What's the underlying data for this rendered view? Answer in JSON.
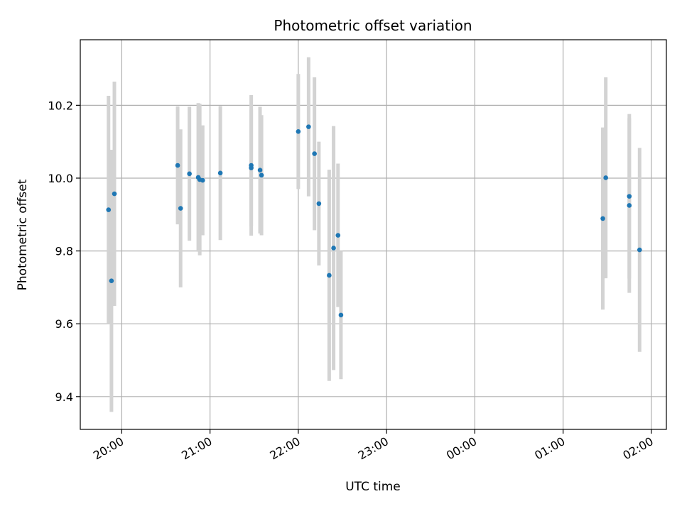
{
  "chart_data": {
    "type": "scatter",
    "title": "Photometric offset variation",
    "xlabel": "UTC time",
    "ylabel": "Photometric offset",
    "x_tick_labels": [
      "20:00",
      "21:00",
      "22:00",
      "23:00",
      "00:00",
      "01:00",
      "02:00"
    ],
    "x_tick_hours": [
      20,
      21,
      22,
      23,
      24,
      25,
      26
    ],
    "xlim_hours": [
      19.53,
      26.17
    ],
    "y_ticks": [
      9.4,
      9.6,
      9.8,
      10.0,
      10.2
    ],
    "y_tick_labels": [
      "9.4",
      "9.6",
      "9.8",
      "10.0",
      "10.2"
    ],
    "ylim": [
      9.31,
      10.38
    ],
    "grid": true,
    "colors": {
      "point": "#1f77b4",
      "errorbar": "#d3d3d3",
      "grid": "#b0b0b0"
    },
    "series": [
      {
        "points": [
          {
            "t": "19:51",
            "y": 9.913,
            "err": 0.313
          },
          {
            "t": "19:53",
            "y": 9.718,
            "err": 0.36
          },
          {
            "t": "19:55",
            "y": 9.957,
            "err": 0.308
          },
          {
            "t": "20:38",
            "y": 10.035,
            "err": 0.162
          },
          {
            "t": "20:40",
            "y": 9.917,
            "err": 0.217
          },
          {
            "t": "20:46",
            "y": 10.012,
            "err": 0.184
          },
          {
            "t": "20:52",
            "y": 10.002,
            "err": 0.204
          },
          {
            "t": "20:53",
            "y": 9.996,
            "err": 0.208
          },
          {
            "t": "20:55",
            "y": 9.994,
            "err": 0.151
          },
          {
            "t": "21:07",
            "y": 10.014,
            "err": 0.184
          },
          {
            "t": "21:28",
            "y": 10.035,
            "err": 0.193
          },
          {
            "t": "21:28",
            "y": 10.028,
            "err": 0.16
          },
          {
            "t": "21:34",
            "y": 10.022,
            "err": 0.174
          },
          {
            "t": "21:35",
            "y": 10.008,
            "err": 0.165
          },
          {
            "t": "22:00",
            "y": 10.128,
            "err": 0.158
          },
          {
            "t": "22:07",
            "y": 10.141,
            "err": 0.191
          },
          {
            "t": "22:11",
            "y": 10.067,
            "err": 0.21
          },
          {
            "t": "22:14",
            "y": 9.93,
            "err": 0.17
          },
          {
            "t": "22:21",
            "y": 9.733,
            "err": 0.29
          },
          {
            "t": "22:24",
            "y": 9.808,
            "err": 0.335
          },
          {
            "t": "22:27",
            "y": 9.843,
            "err": 0.197
          },
          {
            "t": "22:29",
            "y": 9.624,
            "err": 0.176
          },
          {
            "t": "01:27",
            "y": 9.889,
            "err": 0.25
          },
          {
            "t": "01:29",
            "y": 10.001,
            "err": 0.276
          },
          {
            "t": "01:45",
            "y": 9.95,
            "err": 0.226
          },
          {
            "t": "01:45",
            "y": 9.925,
            "err": 0.24
          },
          {
            "t": "01:52",
            "y": 9.803,
            "err": 0.28
          }
        ]
      }
    ]
  }
}
